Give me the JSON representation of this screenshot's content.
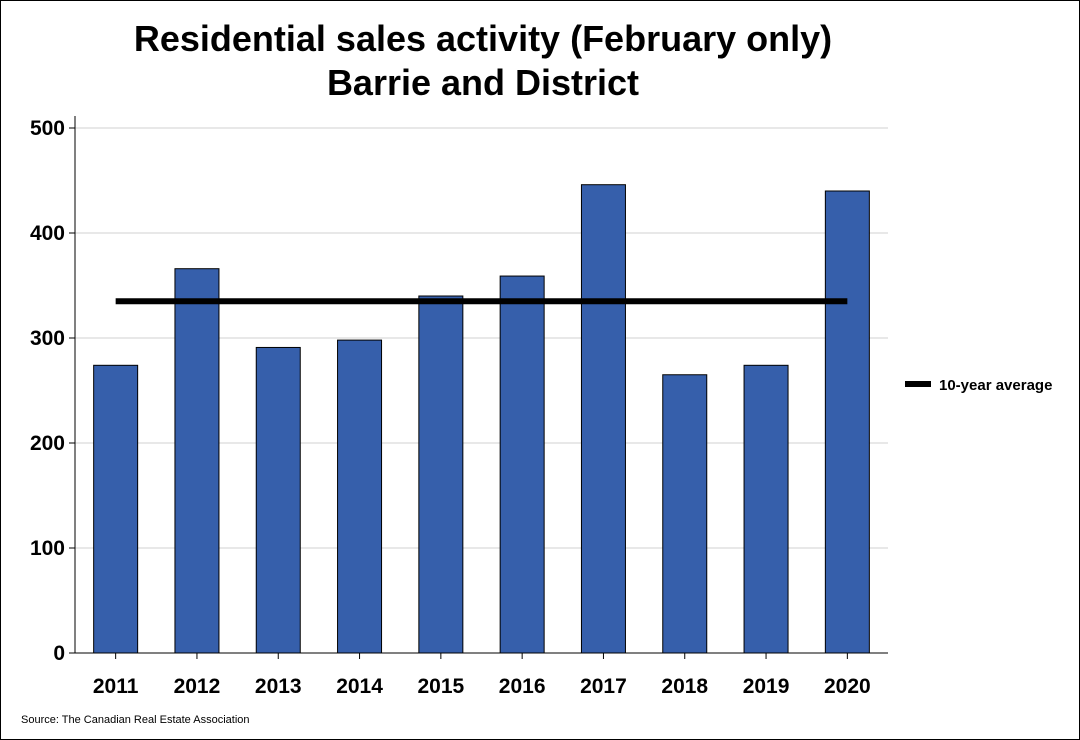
{
  "chart_data": {
    "type": "bar",
    "title": [
      "Residential sales activity (February only)",
      "Barrie and District"
    ],
    "categories": [
      "2011",
      "2012",
      "2013",
      "2014",
      "2015",
      "2016",
      "2017",
      "2018",
      "2019",
      "2020"
    ],
    "series": [
      {
        "values": [
          274,
          366,
          291,
          298,
          340,
          359,
          446,
          265,
          274,
          440
        ]
      }
    ],
    "reference_line": {
      "name": "10-year average",
      "value": 335
    },
    "ylim": [
      0,
      500
    ],
    "yticks": [
      "0",
      "100",
      "200",
      "300",
      "400",
      "500"
    ],
    "grid": true,
    "legend_position": "right",
    "xlabel": "",
    "ylabel": "",
    "source": "Source: The Canadian Real Estate Association",
    "colors": {
      "bar": "#365fab",
      "bar_edge": "#000000",
      "average_line": "#000000",
      "grid": "#d0d0d0"
    }
  }
}
